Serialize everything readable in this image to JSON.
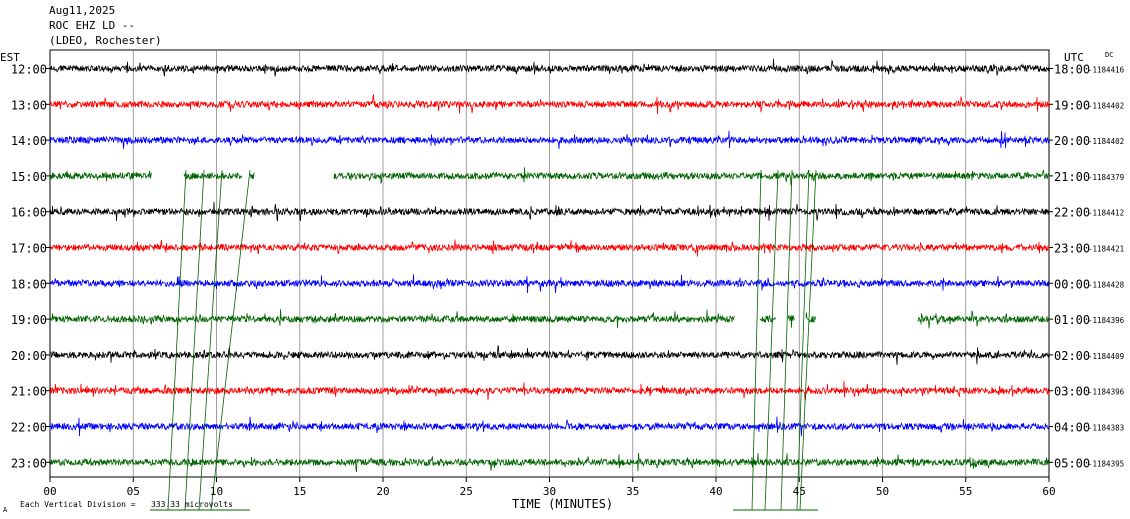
{
  "header": {
    "date": "Aug11,2025",
    "station": "ROC EHZ LD --",
    "network": "(LDEO, Rochester)"
  },
  "labels": {
    "left_zone": "EST",
    "right_zone": "UTC",
    "dc": "DC",
    "footer_prefix": "Each Vertical Division =",
    "footer_value": "333.33 microvolts",
    "footer_mark": "A"
  },
  "colors": [
    "#000000",
    "#ff0000",
    "#0000ff",
    "#006400"
  ],
  "chart_data": {
    "type": "line",
    "xlabel": "TIME (MINUTES)",
    "xlim": [
      0,
      60
    ],
    "xticks": [
      "00",
      "05",
      "10",
      "15",
      "20",
      "25",
      "30",
      "35",
      "40",
      "45",
      "50",
      "55",
      "60"
    ],
    "grid": true,
    "series": [
      {
        "local": "12:00",
        "utc": "18:00",
        "dc": "-1184416",
        "color": "#000000",
        "gaps": []
      },
      {
        "local": "13:00",
        "utc": "19:00",
        "dc": "-1184402",
        "color": "#ff0000",
        "gaps": []
      },
      {
        "local": "14:00",
        "utc": "20:00",
        "dc": "-1184402",
        "color": "#0000ff",
        "gaps": []
      },
      {
        "local": "15:00",
        "utc": "21:00",
        "dc": "-1184379",
        "color": "#006400",
        "gaps": [
          [
            6.1,
            8.0
          ],
          [
            11.5,
            12.0
          ],
          [
            12.3,
            17.0
          ]
        ]
      },
      {
        "local": "16:00",
        "utc": "22:00",
        "dc": "-1184412",
        "color": "#000000",
        "gaps": []
      },
      {
        "local": "17:00",
        "utc": "23:00",
        "dc": "-1184421",
        "color": "#ff0000",
        "gaps": []
      },
      {
        "local": "18:00",
        "utc": "00:00",
        "dc": "-1184428",
        "color": "#0000ff",
        "gaps": []
      },
      {
        "local": "19:00",
        "utc": "01:00",
        "dc": "-1184396",
        "color": "#006400",
        "gaps": [
          [
            41.1,
            42.6
          ],
          [
            43.6,
            44.3
          ],
          [
            44.7,
            45.4
          ],
          [
            46.0,
            52.1
          ]
        ]
      },
      {
        "local": "20:00",
        "utc": "02:00",
        "dc": "-1184409",
        "color": "#000000",
        "gaps": []
      },
      {
        "local": "21:00",
        "utc": "03:00",
        "dc": "-1184396",
        "color": "#ff0000",
        "gaps": []
      },
      {
        "local": "22:00",
        "utc": "04:00",
        "dc": "-1184383",
        "color": "#0000ff",
        "gaps": []
      },
      {
        "local": "23:00",
        "utc": "05:00",
        "dc": "-1184395",
        "color": "#006400",
        "gaps": []
      }
    ]
  }
}
